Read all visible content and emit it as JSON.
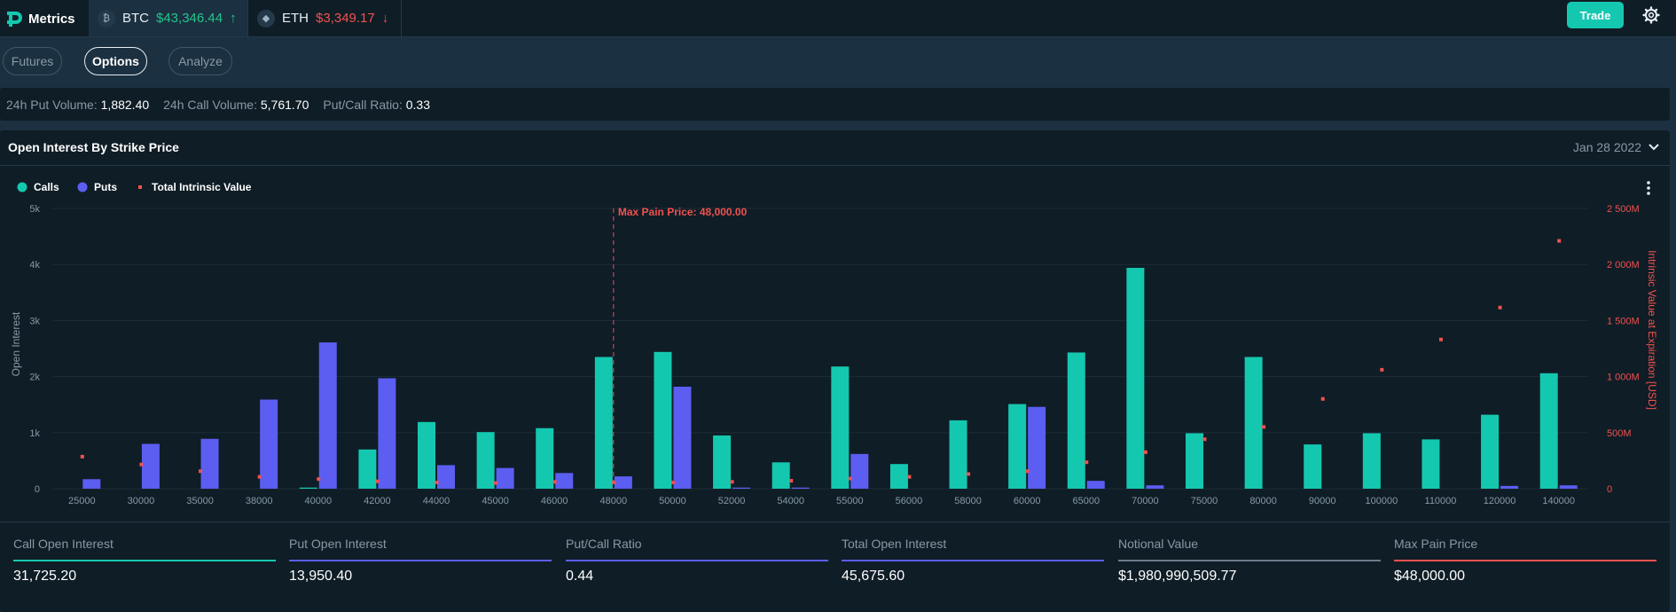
{
  "brand": {
    "name": "Metrics"
  },
  "tickers": [
    {
      "symbol": "BTC",
      "price": "$43,346.44",
      "direction": "up"
    },
    {
      "symbol": "ETH",
      "price": "$3,349.17",
      "direction": "down"
    }
  ],
  "header": {
    "trade_label": "Trade"
  },
  "tabs": [
    {
      "label": "Futures",
      "active": false
    },
    {
      "label": "Options",
      "active": true
    },
    {
      "label": "Analyze",
      "active": false
    }
  ],
  "stats": {
    "put_volume_label": "24h Put Volume:",
    "put_volume": "1,882.40",
    "call_volume_label": "24h Call Volume:",
    "call_volume": "5,761.70",
    "ratio_label": "Put/Call Ratio:",
    "ratio": "0.33"
  },
  "panel": {
    "title": "Open Interest By Strike Price",
    "expiry": "Jan 28 2022"
  },
  "colors": {
    "calls": "#14c8b0",
    "puts": "#5b5ef0",
    "intrinsic": "#f0514f",
    "accent": "#14c8b0"
  },
  "chart_data": {
    "type": "bar",
    "categories": [
      "25000",
      "30000",
      "35000",
      "38000",
      "40000",
      "42000",
      "44000",
      "45000",
      "46000",
      "48000",
      "50000",
      "52000",
      "54000",
      "55000",
      "56000",
      "58000",
      "60000",
      "65000",
      "70000",
      "75000",
      "80000",
      "90000",
      "100000",
      "110000",
      "120000",
      "140000"
    ],
    "series": [
      {
        "name": "Calls",
        "values": [
          0,
          0,
          0,
          0,
          20,
          700,
          1190,
          1010,
          1080,
          2350,
          2440,
          950,
          470,
          2180,
          440,
          1220,
          1510,
          2430,
          3940,
          990,
          2350,
          790,
          990,
          880,
          1320,
          2060
        ]
      },
      {
        "name": "Puts",
        "values": [
          170,
          800,
          890,
          1590,
          2610,
          1970,
          420,
          370,
          280,
          220,
          1820,
          20,
          20,
          620,
          0,
          0,
          1460,
          140,
          60,
          0,
          0,
          0,
          0,
          0,
          50,
          60
        ]
      },
      {
        "name": "Total Intrinsic Value",
        "type": "scatter",
        "axis": "right",
        "values": [
          290,
          220,
          160,
          110,
          90,
          70,
          60,
          55,
          65,
          60,
          60,
          65,
          75,
          95,
          110,
          135,
          160,
          240,
          330,
          445,
          555,
          805,
          1065,
          1335,
          1620,
          2215
        ]
      }
    ],
    "ylabel": "Open Interest",
    "y2label": "Intrinsic Value at Expiration [USD]",
    "ylim": [
      0,
      5000
    ],
    "y2lim": [
      0,
      2500
    ],
    "yticks": [
      "0",
      "1k",
      "2k",
      "3k",
      "4k",
      "5k"
    ],
    "y2ticks": [
      "0",
      "500M",
      "1 000M",
      "1 500M",
      "2 000M",
      "2 500M"
    ],
    "annotation": {
      "label": "Max Pain Price: 48,000.00",
      "category": "48000"
    },
    "legend": "top-left",
    "grid": true
  },
  "summary": [
    {
      "label": "Call Open Interest",
      "value": "31,725.20",
      "color": "#14c8b0"
    },
    {
      "label": "Put Open Interest",
      "value": "13,950.40",
      "color": "#5b5ef0"
    },
    {
      "label": "Put/Call Ratio",
      "value": "0.44",
      "color": "#5b5ef0"
    },
    {
      "label": "Total Open Interest",
      "value": "45,675.60",
      "color": "#5b5ef0"
    },
    {
      "label": "Notional Value",
      "value": "$1,980,990,509.77",
      "color": "#6c7e8c"
    },
    {
      "label": "Max Pain Price",
      "value": "$48,000.00",
      "color": "#f0514f"
    }
  ]
}
